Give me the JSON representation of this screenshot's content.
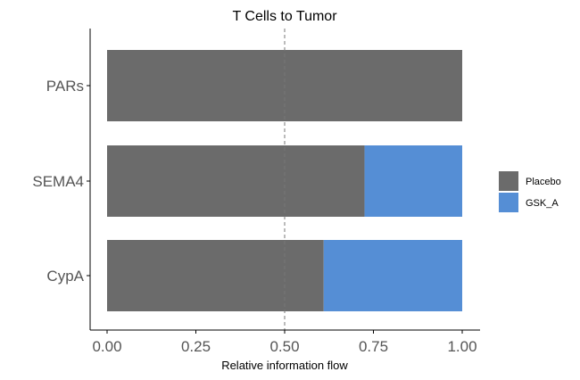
{
  "chart_data": {
    "type": "bar",
    "orientation": "horizontal",
    "stacked": true,
    "title": "T Cells to Tumor",
    "xlabel": "Relative information flow",
    "ylabel": "",
    "categories": [
      "PARs",
      "SEMA4",
      "CypA"
    ],
    "series": [
      {
        "name": "Placebo",
        "color": "#6b6b6b",
        "values": [
          1.0,
          0.725,
          0.61
        ]
      },
      {
        "name": "GSK_A",
        "color": "#558ed5",
        "values": [
          0.0,
          0.275,
          0.39
        ]
      }
    ],
    "xlim": [
      0.0,
      1.0
    ],
    "xticks": [
      0.0,
      0.25,
      0.5,
      0.75,
      1.0
    ],
    "xtick_labels": [
      "0.00",
      "0.25",
      "0.50",
      "0.75",
      "1.00"
    ],
    "reference_line": 0.5,
    "grid": false,
    "legend_position": "right"
  }
}
